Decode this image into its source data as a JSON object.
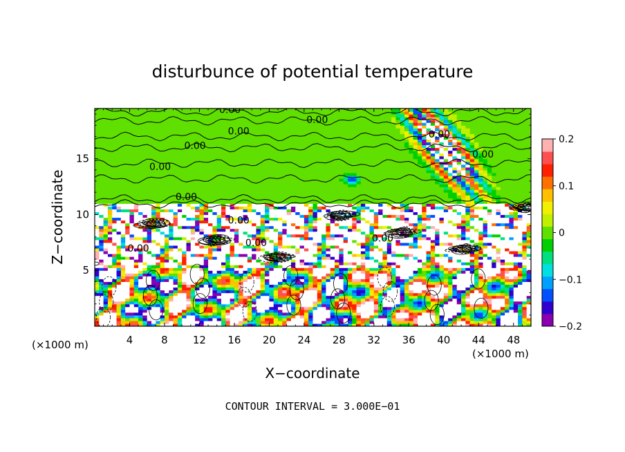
{
  "chart_data": {
    "type": "heatmap",
    "title": "disturbunce of potential temperature",
    "xlabel": "X−coordinate",
    "ylabel": "Z−coordinate",
    "x_unit": "(×1000 m)",
    "z_unit": "(×1000 m)",
    "footer": "CONTOUR INTERVAL = 3.000E−01",
    "xlim": [
      0,
      50
    ],
    "ylim": [
      0,
      19.5
    ],
    "x_ticks": [
      4,
      8,
      12,
      16,
      20,
      24,
      28,
      32,
      36,
      40,
      44,
      48
    ],
    "y_ticks": [
      5,
      10,
      15
    ],
    "colorbar": {
      "range": [
        -0.2,
        0.2
      ],
      "tick_values": [
        0.2,
        0.1,
        0,
        -0.1,
        -0.2
      ],
      "tick_labels": [
        "0.2",
        "0.1",
        "0",
        "−0.1",
        "−0.2"
      ],
      "colors": [
        "#8a00b0",
        "#3000d0",
        "#0050ff",
        "#00a0ff",
        "#00e0e0",
        "#00e080",
        "#00d000",
        "#60e000",
        "#c0f000",
        "#f0f000",
        "#ffc000",
        "#ff7000",
        "#ff2000",
        "#ff5050",
        "#ffb0b0"
      ]
    },
    "contour_labels": [
      {
        "text": "0.00",
        "x": 15.5,
        "z": 19.4
      },
      {
        "text": "0.00",
        "x": 25.5,
        "z": 18.5
      },
      {
        "text": "0.00",
        "x": 16.5,
        "z": 17.5
      },
      {
        "text": "0.00",
        "x": 11.5,
        "z": 16.2
      },
      {
        "text": "0.00",
        "x": 7.5,
        "z": 14.3
      },
      {
        "text": "0.00",
        "x": 10.5,
        "z": 11.6
      },
      {
        "text": "0.00",
        "x": 16.5,
        "z": 9.5
      },
      {
        "text": "0.00",
        "x": 18.5,
        "z": 7.5
      },
      {
        "text": "0.00",
        "x": 5.0,
        "z": 7.0
      },
      {
        "text": "0.00",
        "x": 33.0,
        "z": 7.9
      },
      {
        "text": "0.00",
        "x": 39.5,
        "z": 17.2
      },
      {
        "text": "0.00",
        "x": 44.5,
        "z": 15.4
      }
    ]
  }
}
